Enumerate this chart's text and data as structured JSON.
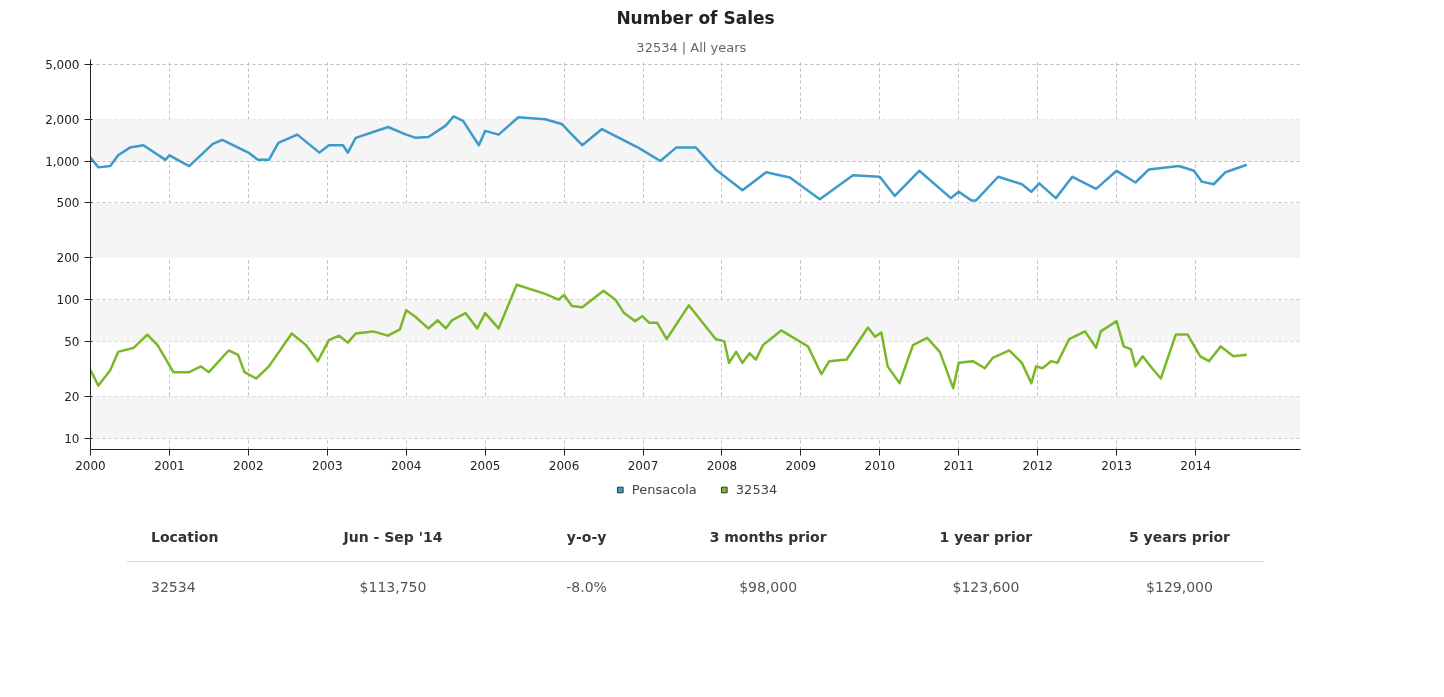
{
  "chart_data": {
    "type": "line",
    "title": "Number of Sales",
    "subtitle": "32534  |  All years",
    "log": true,
    "grid": true,
    "legend": "bottom",
    "xlim": [
      2000,
      2015.33
    ],
    "xticks": [
      2000,
      2001,
      2002,
      2003,
      2004,
      2005,
      2006,
      2007,
      2008,
      2009,
      2010,
      2011,
      2012,
      2013,
      2014
    ],
    "ylim": [
      8.3,
      5400
    ],
    "yticks": [
      10,
      20,
      50,
      100,
      200,
      500,
      {
        "value": 1000,
        "label": "1,000"
      },
      {
        "value": 2000,
        "label": "2,000"
      },
      {
        "value": 5000,
        "label": "5,000"
      }
    ],
    "bands": [
      {
        "axis": "y",
        "from": 10,
        "to": 20,
        "color": "#f5f5f5"
      },
      {
        "axis": "y",
        "from": 50,
        "to": 100,
        "color": "#f5f5f5"
      },
      {
        "axis": "y",
        "from": 200,
        "to": 500,
        "color": "#f5f5f5"
      },
      {
        "axis": "y",
        "from": 1000,
        "to": 2000,
        "color": "#f5f5f5"
      }
    ],
    "series": [
      {
        "name": "Pensacola",
        "color": "#3d9ac9",
        "x": [
          2000.0,
          2000.1,
          2000.25,
          2000.35,
          2000.5,
          2000.67,
          2000.95,
          2001.0,
          2001.25,
          2001.55,
          2001.67,
          2002.0,
          2002.12,
          2002.26,
          2002.38,
          2002.62,
          2002.9,
          2003.02,
          2003.2,
          2003.26,
          2003.36,
          2003.77,
          2004.0,
          2004.12,
          2004.28,
          2004.5,
          2004.6,
          2004.72,
          2004.92,
          2005.0,
          2005.17,
          2005.42,
          2005.76,
          2005.97,
          2006.1,
          2006.23,
          2006.48,
          2006.95,
          2007.22,
          2007.42,
          2007.67,
          2007.92,
          2008.26,
          2008.56,
          2008.86,
          2009.24,
          2009.66,
          2010.0,
          2010.19,
          2010.5,
          2010.9,
          2011.0,
          2011.16,
          2011.22,
          2011.5,
          2011.8,
          2011.92,
          2012.02,
          2012.23,
          2012.44,
          2012.74,
          2013.0,
          2013.24,
          2013.41,
          2013.79,
          2013.98,
          2014.08,
          2014.23,
          2014.38,
          2014.65
        ],
        "values": [
          1060,
          900,
          920,
          1100,
          1250,
          1300,
          1020,
          1100,
          920,
          1330,
          1420,
          1150,
          1020,
          1020,
          1350,
          1550,
          1150,
          1300,
          1300,
          1150,
          1470,
          1760,
          1550,
          1470,
          1490,
          1800,
          2100,
          1950,
          1300,
          1650,
          1550,
          2070,
          2000,
          1850,
          1550,
          1300,
          1700,
          1240,
          1000,
          1250,
          1250,
          870,
          615,
          830,
          760,
          530,
          790,
          770,
          560,
          850,
          540,
          600,
          520,
          520,
          770,
          680,
          600,
          690,
          540,
          770,
          630,
          850,
          700,
          870,
          920,
          850,
          710,
          680,
          830,
          940
        ]
      },
      {
        "name": "32534",
        "color": "#7ab829",
        "x": [
          2000.0,
          2000.1,
          2000.25,
          2000.35,
          2000.55,
          2000.72,
          2000.85,
          2001.05,
          2001.25,
          2001.4,
          2001.5,
          2001.75,
          2001.87,
          2001.95,
          2002.1,
          2002.26,
          2002.55,
          2002.73,
          2002.88,
          2003.02,
          2003.15,
          2003.26,
          2003.36,
          2003.58,
          2003.77,
          2003.92,
          2004.0,
          2004.12,
          2004.28,
          2004.4,
          2004.5,
          2004.58,
          2004.75,
          2004.9,
          2005.0,
          2005.17,
          2005.4,
          2005.76,
          2005.93,
          2006.0,
          2006.1,
          2006.23,
          2006.5,
          2006.65,
          2006.76,
          2006.9,
          2006.99,
          2007.08,
          2007.18,
          2007.3,
          2007.58,
          2007.92,
          2008.03,
          2008.09,
          2008.18,
          2008.26,
          2008.35,
          2008.43,
          2008.52,
          2008.75,
          2009.09,
          2009.26,
          2009.36,
          2009.58,
          2009.85,
          2009.94,
          2010.02,
          2010.1,
          2010.25,
          2010.42,
          2010.6,
          2010.76,
          2010.93,
          2011.0,
          2011.18,
          2011.33,
          2011.43,
          2011.64,
          2011.8,
          2011.92,
          2011.98,
          2012.06,
          2012.17,
          2012.25,
          2012.4,
          2012.6,
          2012.74,
          2012.8,
          2013.0,
          2013.09,
          2013.18,
          2013.24,
          2013.33,
          2013.45,
          2013.56,
          2013.75,
          2013.9,
          2014.06,
          2014.17,
          2014.32,
          2014.48,
          2014.65
        ],
        "values": [
          31,
          24,
          31,
          42,
          45,
          56,
          47,
          30,
          30,
          33,
          30,
          43,
          40,
          30,
          27,
          33,
          57,
          47,
          36,
          51,
          55,
          49,
          57,
          59,
          55,
          61,
          84,
          75,
          62,
          71,
          62,
          71,
          80,
          62,
          80,
          62,
          128,
          110,
          100,
          108,
          90,
          88,
          116,
          100,
          80,
          70,
          76,
          68,
          68,
          52,
          91,
          52,
          50,
          35,
          42,
          35,
          41,
          37,
          47,
          60,
          46,
          29,
          36,
          37,
          63,
          54,
          58,
          33,
          25,
          47,
          53,
          42,
          23,
          35,
          36,
          32,
          38,
          43,
          35,
          25,
          33,
          32,
          36,
          35,
          52,
          59,
          45,
          59,
          70,
          46,
          44,
          33,
          39,
          32,
          27,
          56,
          56,
          39,
          36,
          46,
          39,
          40
        ]
      }
    ],
    "annotations": [
      "Location",
      "Jun - Sep '14",
      "y-o-y",
      "3 months prior",
      "1 year prior",
      "5 years prior",
      "32534",
      "$113,750",
      "-8.0%",
      "$98,000",
      "$123,600",
      "$129,000"
    ]
  }
}
